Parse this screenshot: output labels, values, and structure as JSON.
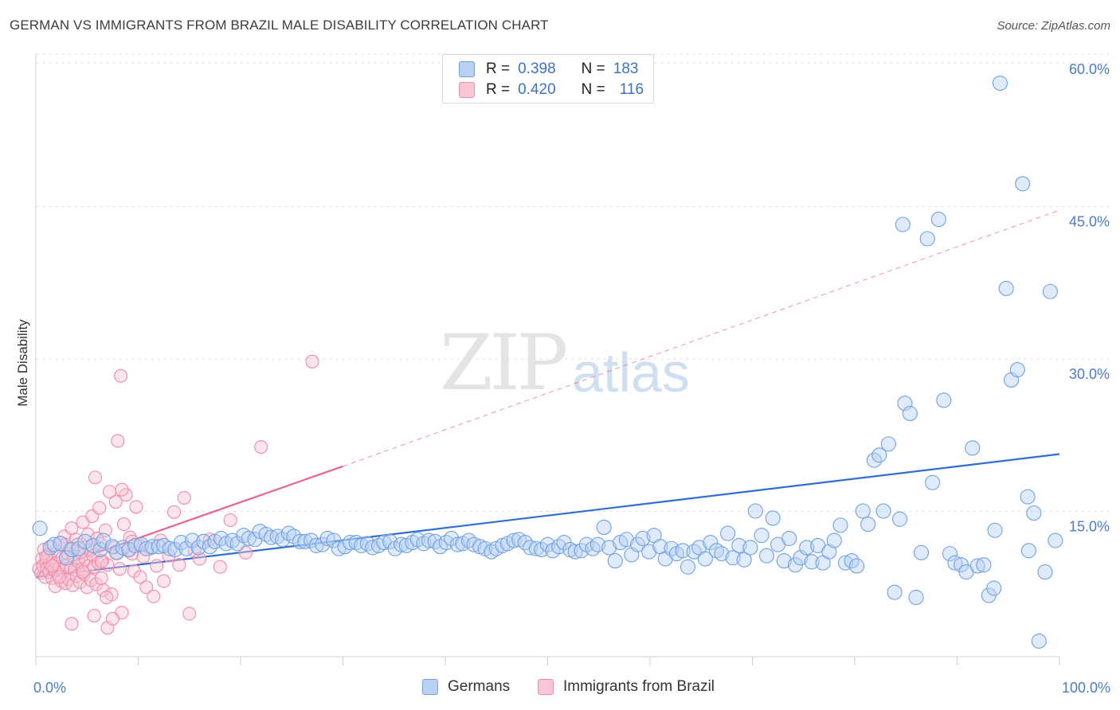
{
  "title": "GERMAN VS IMMIGRANTS FROM BRAZIL MALE DISABILITY CORRELATION CHART",
  "source": "Source: ZipAtlas.com",
  "watermark": {
    "zip": "ZIP",
    "atlas": "atlas"
  },
  "legend_top": {
    "rows": [
      {
        "r_label": "R =",
        "r_value": "0.398",
        "n_label": "N =",
        "n_value": "183",
        "color": "#a8c8f0"
      },
      {
        "r_label": "R =",
        "r_value": "0.420",
        "n_label": "N =",
        "n_value": "116",
        "color": "#f7b8cb"
      }
    ]
  },
  "chart_data": {
    "type": "scatter",
    "title": "GERMAN VS IMMIGRANTS FROM BRAZIL MALE DISABILITY CORRELATION CHART",
    "xlabel": "",
    "ylabel": "Male Disability",
    "xlim": [
      0,
      100
    ],
    "ylim": [
      0,
      63
    ],
    "x_tick_labels": [
      "0.0%",
      "100.0%"
    ],
    "y_tick_labels": [
      "15.0%",
      "30.0%",
      "45.0%",
      "60.0%"
    ],
    "y_ticks": [
      15,
      30,
      45,
      60
    ],
    "grid": "horizontal dashed",
    "legend": "bottom-center",
    "series": [
      {
        "name": "Germans",
        "color": "#6fa1e0",
        "fill": "#b7d1f3",
        "trend": {
          "x0": 0,
          "y0": 9.4,
          "x1": 100,
          "y1": 21.5
        },
        "points": [
          [
            0.4,
            14.2
          ],
          [
            1.4,
            12.3
          ],
          [
            1.8,
            12.6
          ],
          [
            2.4,
            12.7
          ],
          [
            3.0,
            11.3
          ],
          [
            3.5,
            12.1
          ],
          [
            4.2,
            12.2
          ],
          [
            4.8,
            12.9
          ],
          [
            5.6,
            12.5
          ],
          [
            6.3,
            12.1
          ],
          [
            6.6,
            13.0
          ],
          [
            7.5,
            12.4
          ],
          [
            7.9,
            11.8
          ],
          [
            8.5,
            12.3
          ],
          [
            9.1,
            12.1
          ],
          [
            9.7,
            12.5
          ],
          [
            10.3,
            12.6
          ],
          [
            10.8,
            12.2
          ],
          [
            11.4,
            12.4
          ],
          [
            12.0,
            12.4
          ],
          [
            12.5,
            12.5
          ],
          [
            13.1,
            12.2
          ],
          [
            13.6,
            12.1
          ],
          [
            14.2,
            12.8
          ],
          [
            14.7,
            12.2
          ],
          [
            15.3,
            13.0
          ],
          [
            15.9,
            12.3
          ],
          [
            16.4,
            12.9
          ],
          [
            17.0,
            12.4
          ],
          [
            17.5,
            12.9
          ],
          [
            18.1,
            13.2
          ],
          [
            18.6,
            12.7
          ],
          [
            19.2,
            13.0
          ],
          [
            19.7,
            12.7
          ],
          [
            20.3,
            13.5
          ],
          [
            20.8,
            13.2
          ],
          [
            21.4,
            13.1
          ],
          [
            21.9,
            13.9
          ],
          [
            22.5,
            13.6
          ],
          [
            23.0,
            13.3
          ],
          [
            23.6,
            13.4
          ],
          [
            24.1,
            13.1
          ],
          [
            24.7,
            13.7
          ],
          [
            25.2,
            13.4
          ],
          [
            25.8,
            12.9
          ],
          [
            26.3,
            12.9
          ],
          [
            26.9,
            13.0
          ],
          [
            27.4,
            12.5
          ],
          [
            28.0,
            12.6
          ],
          [
            28.5,
            13.2
          ],
          [
            29.1,
            13.0
          ],
          [
            29.6,
            12.2
          ],
          [
            30.2,
            12.4
          ],
          [
            30.7,
            12.8
          ],
          [
            31.3,
            12.8
          ],
          [
            31.8,
            12.5
          ],
          [
            32.4,
            12.7
          ],
          [
            32.9,
            12.3
          ],
          [
            33.5,
            12.5
          ],
          [
            34.0,
            12.8
          ],
          [
            34.6,
            12.9
          ],
          [
            35.1,
            12.2
          ],
          [
            35.7,
            12.6
          ],
          [
            36.2,
            12.5
          ],
          [
            36.8,
            12.8
          ],
          [
            37.3,
            13.1
          ],
          [
            37.9,
            12.7
          ],
          [
            38.4,
            13.0
          ],
          [
            39.0,
            12.9
          ],
          [
            39.5,
            12.4
          ],
          [
            40.1,
            12.8
          ],
          [
            40.6,
            13.2
          ],
          [
            41.2,
            12.6
          ],
          [
            41.7,
            12.7
          ],
          [
            42.3,
            13.0
          ],
          [
            42.8,
            12.6
          ],
          [
            43.4,
            12.4
          ],
          [
            43.9,
            12.2
          ],
          [
            44.5,
            11.9
          ],
          [
            45.0,
            12.2
          ],
          [
            45.6,
            12.5
          ],
          [
            46.1,
            12.7
          ],
          [
            46.7,
            13.0
          ],
          [
            47.2,
            13.1
          ],
          [
            47.8,
            12.8
          ],
          [
            48.3,
            12.3
          ],
          [
            48.9,
            12.2
          ],
          [
            49.4,
            12.1
          ],
          [
            50.0,
            12.6
          ],
          [
            50.5,
            12.0
          ],
          [
            51.1,
            12.4
          ],
          [
            51.6,
            12.8
          ],
          [
            52.2,
            12.1
          ],
          [
            52.7,
            11.9
          ],
          [
            53.3,
            12.0
          ],
          [
            53.8,
            12.6
          ],
          [
            54.4,
            12.2
          ],
          [
            54.9,
            12.6
          ],
          [
            55.5,
            14.3
          ],
          [
            56.0,
            12.3
          ],
          [
            56.6,
            11.0
          ],
          [
            57.1,
            12.8
          ],
          [
            57.7,
            13.1
          ],
          [
            58.2,
            11.6
          ],
          [
            58.8,
            12.6
          ],
          [
            59.3,
            13.2
          ],
          [
            59.9,
            11.9
          ],
          [
            60.4,
            13.5
          ],
          [
            61.0,
            12.4
          ],
          [
            61.5,
            11.2
          ],
          [
            62.1,
            12.2
          ],
          [
            62.6,
            11.7
          ],
          [
            63.2,
            12.0
          ],
          [
            63.7,
            10.4
          ],
          [
            64.3,
            11.9
          ],
          [
            64.8,
            12.3
          ],
          [
            65.4,
            11.2
          ],
          [
            65.9,
            12.8
          ],
          [
            66.5,
            12.0
          ],
          [
            67.0,
            11.7
          ],
          [
            67.6,
            13.7
          ],
          [
            68.1,
            11.3
          ],
          [
            68.7,
            12.5
          ],
          [
            69.2,
            11.1
          ],
          [
            69.8,
            12.3
          ],
          [
            70.3,
            15.9
          ],
          [
            70.9,
            13.5
          ],
          [
            71.4,
            11.5
          ],
          [
            72.0,
            15.2
          ],
          [
            72.5,
            12.6
          ],
          [
            73.1,
            11.0
          ],
          [
            73.6,
            13.2
          ],
          [
            74.2,
            10.6
          ],
          [
            74.7,
            11.3
          ],
          [
            75.3,
            12.3
          ],
          [
            75.8,
            10.9
          ],
          [
            76.4,
            12.5
          ],
          [
            76.9,
            10.8
          ],
          [
            77.5,
            11.9
          ],
          [
            78.0,
            13.0
          ],
          [
            78.6,
            14.5
          ],
          [
            79.1,
            10.8
          ],
          [
            79.7,
            11.0
          ],
          [
            80.2,
            10.5
          ],
          [
            80.8,
            15.9
          ],
          [
            81.3,
            14.6
          ],
          [
            81.9,
            20.9
          ],
          [
            82.4,
            21.4
          ],
          [
            82.8,
            15.9
          ],
          [
            83.3,
            22.5
          ],
          [
            83.9,
            7.9
          ],
          [
            84.4,
            15.1
          ],
          [
            84.9,
            26.5
          ],
          [
            85.4,
            25.5
          ],
          [
            86.0,
            7.4
          ],
          [
            86.5,
            11.8
          ],
          [
            87.1,
            42.7
          ],
          [
            87.6,
            18.7
          ],
          [
            88.2,
            44.6
          ],
          [
            88.7,
            26.8
          ],
          [
            89.3,
            11.7
          ],
          [
            89.8,
            10.8
          ],
          [
            90.4,
            10.6
          ],
          [
            90.9,
            9.9
          ],
          [
            91.5,
            22.1
          ],
          [
            92.0,
            10.5
          ],
          [
            92.6,
            10.6
          ],
          [
            93.1,
            7.6
          ],
          [
            93.7,
            14.0
          ],
          [
            94.2,
            58.0
          ],
          [
            94.8,
            37.8
          ],
          [
            95.3,
            28.8
          ],
          [
            95.9,
            29.8
          ],
          [
            96.4,
            48.1
          ],
          [
            96.9,
            17.3
          ],
          [
            97.5,
            15.7
          ],
          [
            98.0,
            3.1
          ],
          [
            98.6,
            9.9
          ],
          [
            99.1,
            37.5
          ],
          [
            99.6,
            13.0
          ],
          [
            84.7,
            44.1
          ],
          [
            97.0,
            12.0
          ],
          [
            93.6,
            8.3
          ]
        ]
      },
      {
        "name": "Immigrants from Brazil",
        "color": "#f08aa8",
        "fill": "#f9c6d5",
        "trend": {
          "x0": 0,
          "y0": 9.7,
          "x1": 30,
          "y1": 20.3
        },
        "trend_dashed": {
          "x0": 30,
          "y0": 20.3,
          "x1": 100,
          "y1": 45.5
        },
        "points": [
          [
            0.3,
            10.2
          ],
          [
            0.5,
            9.8
          ],
          [
            0.6,
            11.2
          ],
          [
            0.7,
            10.5
          ],
          [
            0.8,
            12.1
          ],
          [
            0.9,
            9.4
          ],
          [
            1.0,
            10.9
          ],
          [
            1.1,
            10.3
          ],
          [
            1.2,
            11.6
          ],
          [
            1.3,
            9.9
          ],
          [
            1.4,
            10.7
          ],
          [
            1.5,
            12.4
          ],
          [
            1.6,
            9.3
          ],
          [
            1.7,
            11.0
          ],
          [
            1.8,
            10.1
          ],
          [
            1.9,
            8.5
          ],
          [
            2.0,
            10.8
          ],
          [
            2.1,
            11.9
          ],
          [
            2.2,
            9.6
          ],
          [
            2.3,
            10.4
          ],
          [
            2.4,
            12.8
          ],
          [
            2.5,
            9.0
          ],
          [
            2.6,
            11.3
          ],
          [
            2.7,
            10.0
          ],
          [
            2.8,
            13.4
          ],
          [
            2.9,
            8.8
          ],
          [
            3.0,
            10.6
          ],
          [
            3.1,
            11.7
          ],
          [
            3.2,
            9.2
          ],
          [
            3.3,
            12.2
          ],
          [
            3.4,
            10.3
          ],
          [
            3.5,
            14.2
          ],
          [
            3.6,
            8.6
          ],
          [
            3.7,
            11.4
          ],
          [
            3.8,
            10.1
          ],
          [
            3.9,
            13.1
          ],
          [
            4.0,
            9.5
          ],
          [
            4.1,
            12.6
          ],
          [
            4.2,
            10.9
          ],
          [
            4.3,
            8.9
          ],
          [
            4.4,
            11.8
          ],
          [
            4.5,
            10.2
          ],
          [
            4.6,
            14.8
          ],
          [
            4.7,
            9.7
          ],
          [
            4.8,
            12.3
          ],
          [
            4.9,
            11.1
          ],
          [
            5.0,
            8.4
          ],
          [
            5.1,
            13.6
          ],
          [
            5.2,
            10.5
          ],
          [
            5.3,
            12.0
          ],
          [
            5.4,
            9.1
          ],
          [
            5.5,
            15.4
          ],
          [
            5.6,
            11.5
          ],
          [
            5.7,
            10.4
          ],
          [
            5.8,
            19.2
          ],
          [
            5.9,
            8.7
          ],
          [
            6.0,
            13.2
          ],
          [
            6.1,
            10.8
          ],
          [
            6.2,
            16.2
          ],
          [
            6.3,
            12.7
          ],
          [
            6.4,
            9.3
          ],
          [
            6.5,
            11.0
          ],
          [
            6.6,
            8.1
          ],
          [
            6.8,
            14.0
          ],
          [
            7.0,
            10.6
          ],
          [
            7.2,
            17.8
          ],
          [
            7.4,
            7.7
          ],
          [
            7.6,
            12.3
          ],
          [
            7.8,
            16.8
          ],
          [
            8.0,
            22.8
          ],
          [
            8.2,
            10.2
          ],
          [
            8.4,
            5.9
          ],
          [
            8.6,
            14.6
          ],
          [
            8.8,
            17.5
          ],
          [
            9.0,
            12.0
          ],
          [
            9.2,
            13.3
          ],
          [
            9.4,
            11.7
          ],
          [
            9.6,
            10.0
          ],
          [
            9.8,
            16.3
          ],
          [
            10.0,
            12.6
          ],
          [
            10.2,
            9.4
          ],
          [
            10.5,
            11.4
          ],
          [
            10.8,
            8.4
          ],
          [
            11.2,
            12.2
          ],
          [
            11.5,
            7.5
          ],
          [
            11.8,
            10.5
          ],
          [
            12.2,
            13.0
          ],
          [
            12.5,
            9.0
          ],
          [
            13.0,
            11.5
          ],
          [
            13.5,
            15.8
          ],
          [
            14.0,
            10.6
          ],
          [
            14.5,
            17.2
          ],
          [
            15.0,
            5.8
          ],
          [
            15.5,
            12.0
          ],
          [
            16.0,
            11.2
          ],
          [
            17.0,
            13.1
          ],
          [
            18.0,
            10.4
          ],
          [
            19.0,
            15.0
          ],
          [
            20.5,
            11.8
          ],
          [
            22.0,
            22.2
          ],
          [
            27.0,
            30.6
          ],
          [
            8.3,
            29.2
          ],
          [
            5.7,
            5.6
          ],
          [
            7.0,
            4.4
          ],
          [
            3.5,
            4.8
          ],
          [
            7.5,
            5.3
          ],
          [
            6.9,
            7.4
          ],
          [
            8.4,
            18.0
          ],
          [
            9.4,
            12.9
          ],
          [
            2.3,
            9.4
          ],
          [
            1.0,
            11.4
          ],
          [
            1.6,
            10.5
          ],
          [
            2.9,
            12.6
          ],
          [
            4.6,
            9.9
          ],
          [
            6.4,
            10.9
          ],
          [
            7.9,
            11.8
          ]
        ]
      }
    ]
  },
  "legend_bottom": {
    "items": [
      {
        "label": "Germans",
        "color": "#a8c8f0"
      },
      {
        "label": "Immigrants from Brazil",
        "color": "#f7b8cb"
      }
    ]
  }
}
